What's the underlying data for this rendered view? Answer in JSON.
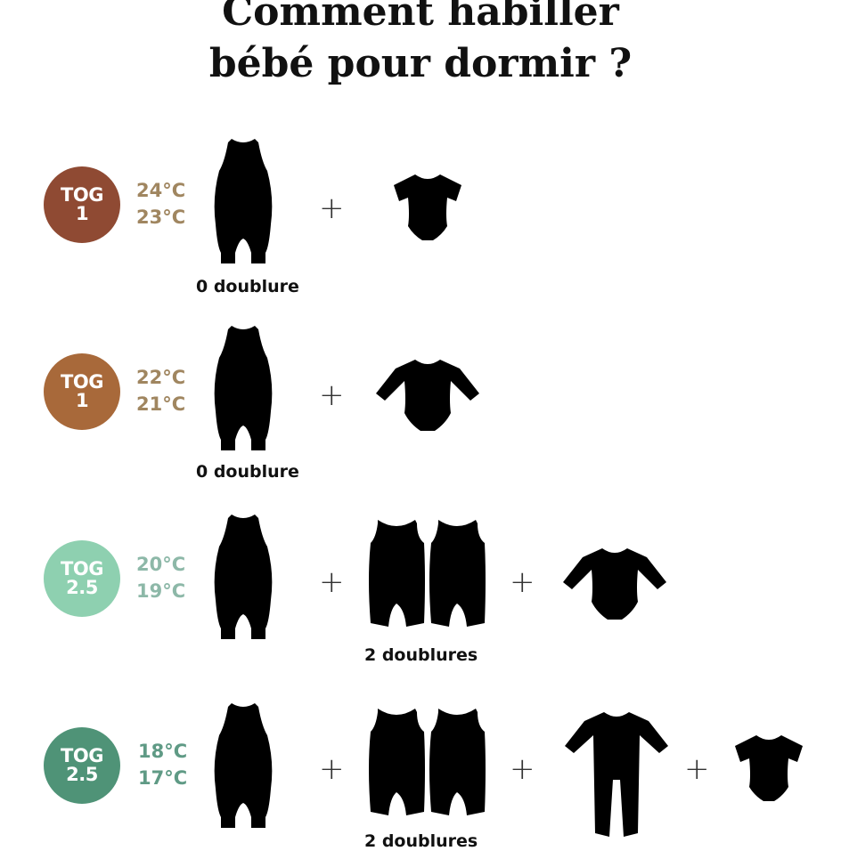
{
  "title": {
    "line1": "Comment habiller",
    "line2": "bébé pour dormir ?"
  },
  "plus": "+",
  "rows": [
    {
      "tog": "TOG",
      "tog_value": "1",
      "temp_high": "24°C",
      "temp_low": "23°C",
      "color": "#8f4a33",
      "temp_color": "#a08660",
      "label": "0 doublure",
      "items": [
        "sleeping-bag-icon",
        "short-sleeve-bodysuit-icon"
      ]
    },
    {
      "tog": "TOG",
      "tog_value": "1",
      "temp_high": "22°C",
      "temp_low": "21°C",
      "color": "#a8693a",
      "temp_color": "#a08660",
      "label": "0 doublure",
      "items": [
        "sleeping-bag-icon",
        "long-sleeve-bodysuit-icon"
      ]
    },
    {
      "tog": "TOG",
      "tog_value": "2.5",
      "temp_high": "20°C",
      "temp_low": "19°C",
      "color": "#8ed0b0",
      "temp_color": "#8db8a8",
      "label": "2 doublures",
      "items": [
        "sleeping-bag-icon",
        "liners-icon",
        "long-sleeve-bodysuit-icon"
      ]
    },
    {
      "tog": "TOG",
      "tog_value": "2.5",
      "temp_high": "18°C",
      "temp_low": "17°C",
      "color": "#4f9377",
      "temp_color": "#5f9a85",
      "label": "2 doublures",
      "items": [
        "sleeping-bag-icon",
        "liners-icon",
        "footed-pyjama-icon",
        "short-sleeve-bodysuit-icon"
      ]
    }
  ]
}
